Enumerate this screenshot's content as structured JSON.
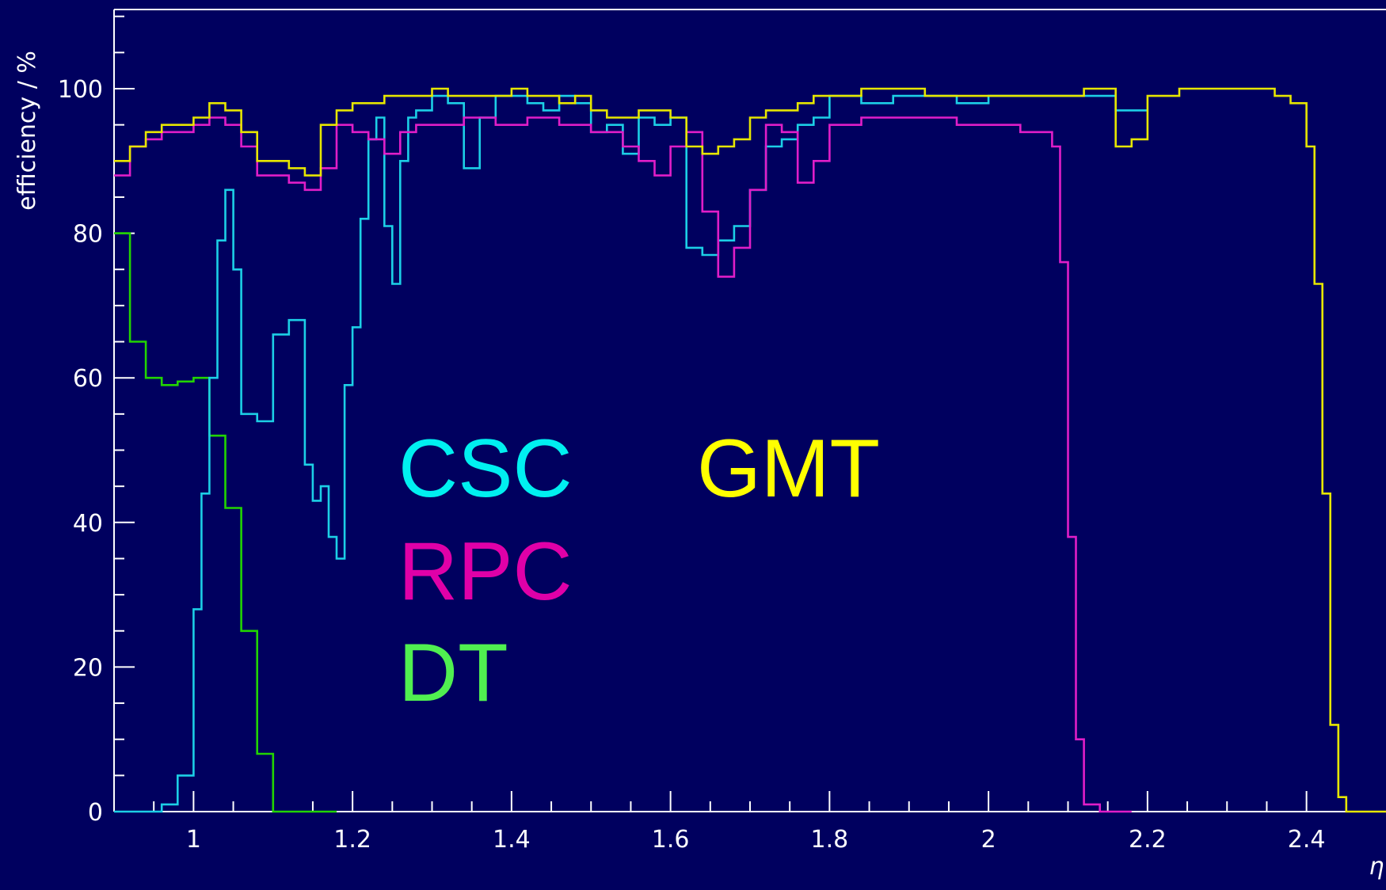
{
  "chart_data": {
    "type": "line",
    "xlabel": "η",
    "ylabel": "efficiency / %",
    "xlim": [
      0.9,
      2.5
    ],
    "ylim": [
      0,
      110
    ],
    "x_ticks": [
      1.0,
      1.2,
      1.4,
      1.6,
      1.8,
      2.0,
      2.2,
      2.4
    ],
    "x_tick_labels": [
      "1",
      "1.2",
      "1.4",
      "1.6",
      "1.8",
      "2",
      "2.2",
      "2.4"
    ],
    "y_ticks": [
      0,
      20,
      40,
      60,
      80,
      100
    ],
    "y_tick_labels": [
      "0",
      "20",
      "40",
      "60",
      "80",
      "100"
    ],
    "grid": false,
    "legend_placement": "center-left",
    "colors": {
      "background": "#00005f",
      "axes": "#ffffff",
      "CSC": "#1ccfe6",
      "RPC": "#e01ec8",
      "DT": "#22d400",
      "GMT": "#e6e600"
    },
    "text_labels": {
      "CSC": {
        "text": "CSC",
        "color": "#00f0f0"
      },
      "RPC": {
        "text": "RPC",
        "color": "#e000a8"
      },
      "DT": {
        "text": "DT",
        "color": "#50f050"
      },
      "GMT": {
        "text": "GMT",
        "color": "#ffff00"
      }
    },
    "series": [
      {
        "name": "DT",
        "x": [
          0.9,
          0.92,
          0.94,
          0.96,
          0.98,
          1.0,
          1.02,
          1.04,
          1.06,
          1.08,
          1.1,
          1.12,
          1.14,
          1.16
        ],
        "values": [
          80,
          65,
          60,
          59,
          59.5,
          60,
          52,
          42,
          25,
          8,
          0,
          0,
          0,
          0
        ]
      },
      {
        "name": "CSC",
        "x": [
          0.9,
          0.94,
          0.96,
          0.98,
          1.0,
          1.01,
          1.02,
          1.03,
          1.04,
          1.05,
          1.06,
          1.07,
          1.08,
          1.1,
          1.12,
          1.14,
          1.15,
          1.16,
          1.17,
          1.18,
          1.19,
          1.2,
          1.21,
          1.22,
          1.23,
          1.24,
          1.25,
          1.26,
          1.27,
          1.28,
          1.3,
          1.32,
          1.34,
          1.36,
          1.38,
          1.4,
          1.42,
          1.44,
          1.46,
          1.48,
          1.5,
          1.52,
          1.54,
          1.56,
          1.58,
          1.6,
          1.62,
          1.64,
          1.66,
          1.68,
          1.7,
          1.72,
          1.74,
          1.76,
          1.78,
          1.8,
          1.84,
          1.88,
          1.92,
          1.96,
          2.0,
          2.04,
          2.08,
          2.12,
          2.16
        ],
        "values": [
          0,
          0,
          1,
          5,
          28,
          44,
          60,
          79,
          86,
          75,
          55,
          55,
          54,
          66,
          68,
          48,
          43,
          45,
          38,
          35,
          59,
          67,
          82,
          93,
          96,
          81,
          73,
          90,
          96,
          97,
          99,
          98,
          89,
          96,
          99,
          99,
          98,
          97,
          99,
          98,
          94,
          95,
          91,
          96,
          95,
          96,
          78,
          77,
          79,
          81,
          86,
          92,
          93,
          95,
          96,
          99,
          98,
          99,
          99,
          98,
          99,
          99,
          99,
          99,
          97
        ]
      },
      {
        "name": "RPC",
        "x": [
          0.9,
          0.92,
          0.94,
          0.96,
          1.0,
          1.02,
          1.04,
          1.06,
          1.08,
          1.1,
          1.12,
          1.14,
          1.16,
          1.18,
          1.2,
          1.22,
          1.24,
          1.26,
          1.28,
          1.3,
          1.34,
          1.38,
          1.42,
          1.46,
          1.5,
          1.54,
          1.56,
          1.58,
          1.6,
          1.62,
          1.64,
          1.66,
          1.68,
          1.7,
          1.72,
          1.74,
          1.76,
          1.78,
          1.8,
          1.84,
          1.88,
          1.92,
          1.96,
          2.0,
          2.04,
          2.06,
          2.08,
          2.09,
          2.1,
          2.11,
          2.12,
          2.14,
          2.16
        ],
        "values": [
          88,
          92,
          93,
          94,
          95,
          96,
          95,
          92,
          88,
          88,
          87,
          86,
          89,
          95,
          94,
          93,
          91,
          94,
          95,
          95,
          96,
          95,
          96,
          95,
          94,
          92,
          90,
          88,
          92,
          94,
          83,
          74,
          78,
          86,
          95,
          94,
          87,
          90,
          95,
          96,
          96,
          96,
          95,
          95,
          94,
          94,
          92,
          76,
          38,
          10,
          1,
          0,
          0
        ]
      },
      {
        "name": "GMT",
        "x": [
          0.9,
          0.92,
          0.94,
          0.96,
          0.98,
          1.0,
          1.02,
          1.04,
          1.06,
          1.08,
          1.1,
          1.12,
          1.14,
          1.16,
          1.18,
          1.2,
          1.22,
          1.24,
          1.26,
          1.28,
          1.3,
          1.32,
          1.34,
          1.36,
          1.38,
          1.4,
          1.42,
          1.44,
          1.46,
          1.48,
          1.5,
          1.52,
          1.54,
          1.56,
          1.58,
          1.6,
          1.62,
          1.64,
          1.66,
          1.68,
          1.7,
          1.72,
          1.74,
          1.76,
          1.78,
          1.8,
          1.84,
          1.88,
          1.92,
          1.96,
          2.0,
          2.04,
          2.08,
          2.12,
          2.16,
          2.18,
          2.2,
          2.24,
          2.28,
          2.32,
          2.36,
          2.38,
          2.4,
          2.41,
          2.42,
          2.43,
          2.44,
          2.45,
          2.46,
          2.5
        ],
        "values": [
          90,
          92,
          94,
          95,
          95,
          96,
          98,
          97,
          94,
          90,
          90,
          89,
          88,
          95,
          97,
          98,
          98,
          99,
          99,
          99,
          100,
          99,
          99,
          99,
          99,
          100,
          99,
          99,
          98,
          99,
          97,
          96,
          96,
          97,
          97,
          96,
          92,
          91,
          92,
          93,
          96,
          97,
          97,
          98,
          99,
          99,
          100,
          100,
          99,
          99,
          99,
          99,
          99,
          100,
          92,
          93,
          99,
          100,
          100,
          100,
          99,
          98,
          92,
          73,
          44,
          12,
          2,
          0,
          0,
          0
        ]
      }
    ]
  }
}
